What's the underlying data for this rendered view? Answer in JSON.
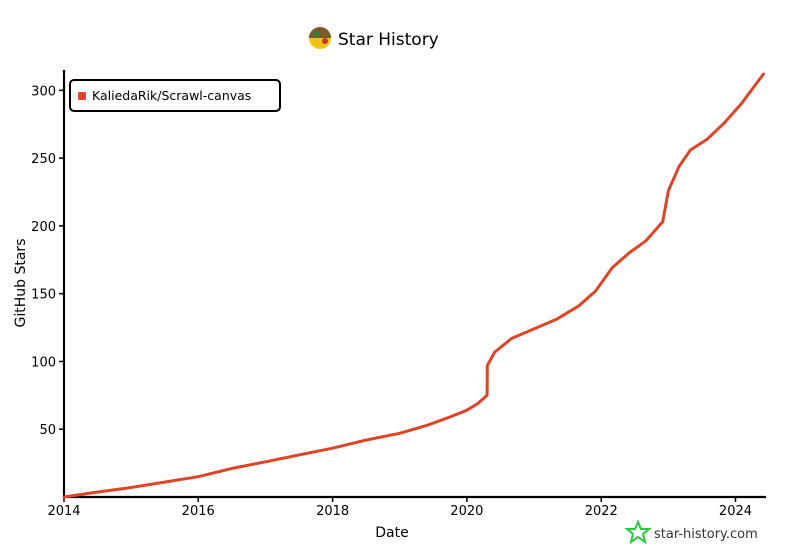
{
  "chart_data": {
    "type": "line",
    "title": "Star History",
    "xlabel": "Date",
    "ylabel": "GitHub Stars",
    "x_ticks": [
      "2014",
      "2016",
      "2018",
      "2020",
      "2022",
      "2024"
    ],
    "y_ticks": [
      50,
      100,
      150,
      200,
      250,
      300
    ],
    "xlim": [
      "2014-01-01",
      "2024-06-15"
    ],
    "ylim": [
      0,
      315
    ],
    "grid": false,
    "legend_position": "top-left",
    "series": [
      {
        "name": "KaliedaRik/Scrawl-canvas",
        "color": "#dd4528",
        "points": [
          [
            "2014-01-01",
            0
          ],
          [
            "2014-06-01",
            3
          ],
          [
            "2015-01-01",
            7
          ],
          [
            "2015-07-01",
            11
          ],
          [
            "2016-01-01",
            15
          ],
          [
            "2016-07-01",
            21
          ],
          [
            "2017-01-01",
            26
          ],
          [
            "2017-07-01",
            31
          ],
          [
            "2018-01-01",
            36
          ],
          [
            "2018-07-01",
            42
          ],
          [
            "2019-01-01",
            47
          ],
          [
            "2019-06-01",
            53
          ],
          [
            "2019-10-01",
            59
          ],
          [
            "2020-01-01",
            64
          ],
          [
            "2020-03-01",
            69
          ],
          [
            "2020-04-20",
            75
          ],
          [
            "2020-04-21",
            97
          ],
          [
            "2020-06-01",
            107
          ],
          [
            "2020-09-01",
            117
          ],
          [
            "2021-01-01",
            124
          ],
          [
            "2021-05-01",
            131
          ],
          [
            "2021-09-01",
            141
          ],
          [
            "2021-12-01",
            152
          ],
          [
            "2022-03-01",
            169
          ],
          [
            "2022-06-01",
            180
          ],
          [
            "2022-09-01",
            189
          ],
          [
            "2022-12-01",
            203
          ],
          [
            "2023-01-01",
            226
          ],
          [
            "2023-03-01",
            244
          ],
          [
            "2023-05-01",
            256
          ],
          [
            "2023-08-01",
            264
          ],
          [
            "2023-11-01",
            276
          ],
          [
            "2024-02-01",
            290
          ],
          [
            "2024-06-01",
            312
          ]
        ]
      }
    ]
  },
  "watermark": {
    "text": "star-history.com",
    "icon": "star-history-logo-icon",
    "color": "#27c93f"
  },
  "title_icon": "avatar-icon"
}
